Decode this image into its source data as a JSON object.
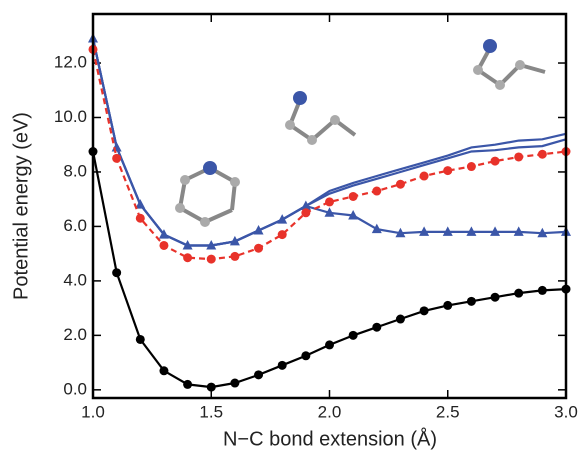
{
  "chart_data": {
    "type": "line",
    "x_label": "N−C bond extension (Å)",
    "y_label": "Potential energy (eV)",
    "xlim": [
      1.0,
      3.0
    ],
    "ylim": [
      -0.3,
      13.8
    ],
    "xticks": [
      {
        "value": 1.0,
        "label": "1.0"
      },
      {
        "value": 1.5,
        "label": "1.5"
      },
      {
        "value": 2.0,
        "label": "2.0"
      },
      {
        "value": 2.5,
        "label": "2.5"
      },
      {
        "value": 3.0,
        "label": "3.0"
      }
    ],
    "yticks": [
      {
        "value": 0,
        "label": "0.0"
      },
      {
        "value": 2,
        "label": "2.0"
      },
      {
        "value": 4,
        "label": "4.0"
      },
      {
        "value": 6,
        "label": "6.0"
      },
      {
        "value": 8,
        "label": "8.0"
      },
      {
        "value": 10,
        "label": "10.0"
      },
      {
        "value": 12,
        "label": "12.0"
      }
    ],
    "x": [
      1.0,
      1.1,
      1.2,
      1.3,
      1.4,
      1.5,
      1.6,
      1.7,
      1.8,
      1.9,
      2.0,
      2.1,
      2.2,
      2.3,
      2.4,
      2.5,
      2.6,
      2.7,
      2.8,
      2.9,
      3.0
    ],
    "series": [
      {
        "color": "#3b56a8",
        "marker": "none",
        "dashed": false,
        "values": [
          12.9,
          8.9,
          6.8,
          5.7,
          5.3,
          5.3,
          5.45,
          5.85,
          6.25,
          6.75,
          7.3,
          7.6,
          7.85,
          8.1,
          8.35,
          8.6,
          8.9,
          9.0,
          9.15,
          9.2,
          9.4
        ]
      },
      {
        "color": "#3b56a8",
        "marker": "none",
        "dashed": false,
        "values": [
          12.9,
          8.9,
          6.8,
          5.7,
          5.3,
          5.3,
          5.45,
          5.85,
          6.25,
          6.75,
          7.2,
          7.5,
          7.75,
          8.0,
          8.25,
          8.5,
          8.75,
          8.8,
          8.9,
          8.95,
          9.2
        ]
      },
      {
        "color": "#3b56a8",
        "marker": "triangle",
        "dashed": false,
        "values": [
          12.9,
          8.9,
          6.8,
          5.7,
          5.3,
          5.3,
          5.45,
          5.85,
          6.25,
          6.75,
          6.5,
          6.4,
          5.9,
          5.75,
          5.8,
          5.8,
          5.8,
          5.8,
          5.8,
          5.75,
          5.8
        ]
      },
      {
        "color": "#e8322a",
        "marker": "circle",
        "dashed": true,
        "values": [
          12.5,
          8.5,
          6.3,
          5.3,
          4.85,
          4.8,
          4.9,
          5.2,
          5.7,
          6.5,
          6.9,
          7.1,
          7.3,
          7.55,
          7.85,
          8.05,
          8.2,
          8.4,
          8.55,
          8.65,
          8.75
        ]
      },
      {
        "color": "#000000",
        "marker": "circle",
        "dashed": false,
        "values": [
          8.75,
          4.3,
          1.85,
          0.7,
          0.2,
          0.1,
          0.25,
          0.55,
          0.9,
          1.25,
          1.65,
          2.0,
          2.3,
          2.6,
          2.9,
          3.1,
          3.25,
          3.4,
          3.55,
          3.65,
          3.7
        ]
      }
    ]
  }
}
